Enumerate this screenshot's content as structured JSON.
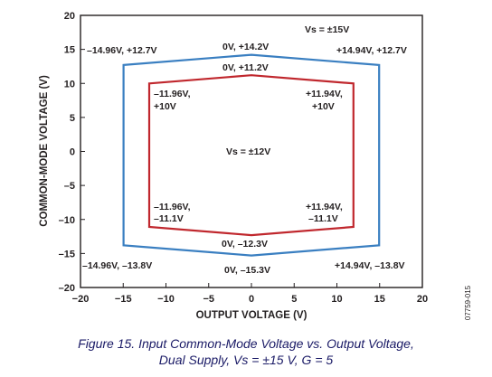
{
  "chart_data": {
    "type": "line",
    "xlabel": "OUTPUT VOLTAGE (V)",
    "ylabel": "COMMON-MODE VOLTAGE (V)",
    "xlim": [
      -20,
      20
    ],
    "ylim": [
      -20,
      20
    ],
    "xticks": [
      -20,
      -15,
      -10,
      -5,
      0,
      5,
      10,
      15,
      20
    ],
    "yticks": [
      20,
      15,
      10,
      5,
      0,
      -5,
      -10,
      -15,
      -20
    ],
    "xtick_labels": [
      "−20",
      "−15",
      "−10",
      "−5",
      "0",
      "5",
      "10",
      "15",
      "20"
    ],
    "ytick_labels": [
      "20",
      "15",
      "10",
      "5",
      "0",
      "–5",
      "–10",
      "–15",
      "–20"
    ],
    "grid": false,
    "series": [
      {
        "name": "Vₛ = ±15V",
        "color": "#3a7fc1",
        "points": [
          [
            -14.96,
            12.7
          ],
          [
            0,
            14.2
          ],
          [
            14.94,
            12.7
          ],
          [
            14.94,
            -13.8
          ],
          [
            0,
            -15.3
          ],
          [
            -14.96,
            -13.8
          ]
        ]
      },
      {
        "name": "Vₛ = ±12V",
        "color": "#c0272d",
        "points": [
          [
            -11.96,
            10
          ],
          [
            0,
            11.2
          ],
          [
            11.94,
            10
          ],
          [
            11.94,
            -11.1
          ],
          [
            0,
            -12.3
          ],
          [
            -11.96,
            -11.1
          ]
        ]
      }
    ],
    "annotations": {
      "vs15": "Vs = ±15V",
      "vs12": "Vs = ±12V",
      "b_tl": "–14.96V, +12.7V",
      "b_tc": "0V, +14.2V",
      "b_tr": "+14.94V, +12.7V",
      "r_tc": "0V, +11.2V",
      "r_tl_1": "–11.96V,",
      "r_tl_2": "+10V",
      "r_tr_1": "+11.94V,",
      "r_tr_2": "+10V",
      "r_bl_1": "–11.96V,",
      "r_bl_2": "–11.1V",
      "r_br_1": "+11.94V,",
      "r_br_2": "–11.1V",
      "r_bc": "0V, –12.3V",
      "b_bl": "–14.96V, –13.8V",
      "b_bc": "0V, –15.3V",
      "b_br": "+14.94V, –13.8V"
    },
    "figure_id": "07759-015",
    "caption_line1": "Figure 15. Input Common-Mode Voltage vs. Output Voltage,",
    "caption_line2": "Dual Supply, Vs = ±15 V, G = 5"
  }
}
